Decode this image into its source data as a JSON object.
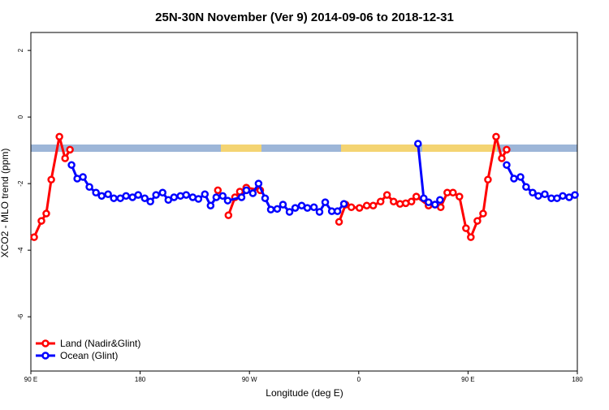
{
  "chart_data": {
    "type": "line",
    "title": "25N-30N November (Ver 9)   2014-09-06 to 2018-12-31",
    "x_label": "Longitude (deg E)",
    "y_label": "XCO2 - MLO trend (ppm)",
    "xlim": [
      90,
      540
    ],
    "ylim": [
      -7.63,
      2.54
    ],
    "xticks": [
      {
        "value": 90,
        "label": "90 E"
      },
      180,
      {
        "value": 270,
        "label": "90 W"
      },
      {
        "value": 360,
        "label": "0"
      },
      {
        "value": 450,
        "label": "90 E"
      },
      {
        "value": 540,
        "label": "180"
      }
    ],
    "yticks": [
      2,
      0,
      -2,
      -4,
      -6
    ],
    "legend": "bottom-left",
    "series": [
      {
        "name": "Land (Nadir&Glint)",
        "color": "#ff0000",
        "x": [
          92.7,
          98.7,
          102.7,
          106.8,
          113.5,
          118.2,
          122.2,
          null,
          244.0,
          null,
          252.7,
          258.1,
          262.1,
          267.4,
          278.9,
          null,
          343.8,
          349.2,
          353.9,
          360.6,
          366.6,
          371.9,
          378.0,
          383.3,
          388.7,
          394.0,
          398.7,
          403.4,
          407.4,
          417.5,
          422.8,
          427.5,
          432.9,
          437.6,
          442.9,
          448.3,
          452.3,
          457.7,
          462.4,
          466.4,
          473.1,
          477.8,
          481.8
        ],
        "values": [
          -3.61,
          -3.12,
          -2.9,
          -1.88,
          -0.59,
          -1.24,
          -0.98,
          null,
          -2.2,
          null,
          -2.95,
          -2.41,
          -2.24,
          -2.12,
          -2.2,
          null,
          -3.15,
          -2.63,
          -2.71,
          -2.73,
          -2.66,
          -2.66,
          -2.54,
          -2.34,
          -2.54,
          -2.61,
          -2.59,
          -2.54,
          -2.39,
          -2.66,
          -2.63,
          -2.71,
          -2.27,
          -2.27,
          -2.39,
          -3.34,
          -3.61,
          -3.12,
          -2.9,
          -1.88,
          -0.59,
          -1.24,
          -0.98
        ]
      },
      {
        "name": "Ocean (Glint)",
        "color": "#0000ff",
        "x": [
          123.5,
          128.2,
          132.9,
          138.2,
          143.6,
          148.3,
          153.6,
          158.3,
          163.7,
          168.4,
          173.7,
          178.4,
          183.8,
          188.4,
          193.1,
          198.5,
          203.2,
          207.9,
          213.2,
          217.9,
          223.3,
          228.0,
          233.3,
          238.0,
          242.7,
          248.0,
          252.1,
          263.5,
          267.5,
          272.8,
          277.5,
          282.9,
          287.6,
          292.9,
          297.6,
          303.0,
          307.7,
          313.0,
          317.7,
          323.1,
          327.7,
          332.4,
          337.8,
          342.5,
          347.8,
          null,
          408.8,
          413.5,
          417.5,
          422.8,
          426.9,
          null,
          481.8,
          487.8,
          493.2,
          497.8,
          503.2,
          507.9,
          513.2,
          518.6,
          523.3,
          528.0,
          533.3,
          538.0
        ],
        "values": [
          -1.44,
          -1.85,
          -1.8,
          -2.1,
          -2.27,
          -2.37,
          -2.32,
          -2.44,
          -2.44,
          -2.37,
          -2.41,
          -2.34,
          -2.44,
          -2.54,
          -2.34,
          -2.27,
          -2.49,
          -2.41,
          -2.37,
          -2.34,
          -2.41,
          -2.46,
          -2.32,
          -2.66,
          -2.41,
          -2.37,
          -2.51,
          -2.41,
          -2.2,
          -2.29,
          -2.0,
          -2.44,
          -2.78,
          -2.76,
          -2.63,
          -2.85,
          -2.73,
          -2.66,
          -2.73,
          -2.71,
          -2.85,
          -2.56,
          -2.83,
          -2.83,
          -2.61,
          null,
          -0.8,
          -2.44,
          -2.56,
          -2.63,
          -2.49,
          null,
          -1.44,
          -1.85,
          -1.8,
          -2.1,
          -2.27,
          -2.37,
          -2.32,
          -2.44,
          -2.44,
          -2.37,
          -2.41,
          -2.34
        ]
      }
    ]
  }
}
